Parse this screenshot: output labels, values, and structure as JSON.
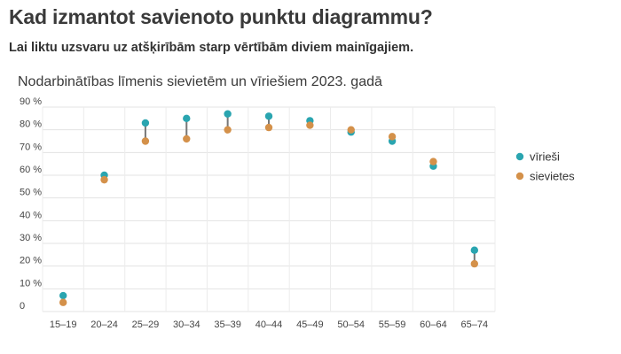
{
  "page": {
    "title": "Kad izmantot savienoto punktu diagrammu?",
    "subtitle": "Lai liktu uzsvaru uz atšķirībām starp vērtībām diviem mainīgajiem."
  },
  "chart_data": {
    "type": "scatter",
    "subtype": "connected-dot",
    "title": "Nodarbinātības līmenis sievietēm un vīriešiem 2023. gadā",
    "xlabel": "",
    "ylabel": "",
    "categories": [
      "15–19",
      "20–24",
      "25–29",
      "30–34",
      "35–39",
      "40–44",
      "45–49",
      "50–54",
      "55–59",
      "60–64",
      "65–74"
    ],
    "series": [
      {
        "name": "vīrieši",
        "color": "#2aa5b0",
        "values": [
          7,
          60,
          83,
          85,
          87,
          86,
          84,
          79,
          75,
          64,
          27
        ]
      },
      {
        "name": "sievietes",
        "color": "#d4914a",
        "values": [
          4,
          58,
          75,
          76,
          80,
          81,
          82,
          80,
          77,
          66,
          21
        ]
      }
    ],
    "ylim": [
      0,
      90
    ],
    "yticks": [
      0,
      10,
      20,
      30,
      40,
      50,
      60,
      70,
      80,
      90
    ],
    "ytick_labels": [
      "0",
      "10 %",
      "20 %",
      "30 %",
      "40 %",
      "50 %",
      "60 %",
      "70 %",
      "80 %",
      "90 %"
    ],
    "connector_color": "#777777",
    "grid": true,
    "legend": "right"
  }
}
